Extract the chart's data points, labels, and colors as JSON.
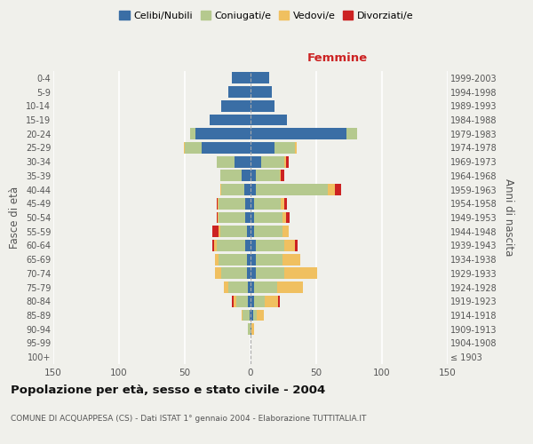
{
  "age_groups": [
    "100+",
    "95-99",
    "90-94",
    "85-89",
    "80-84",
    "75-79",
    "70-74",
    "65-69",
    "60-64",
    "55-59",
    "50-54",
    "45-49",
    "40-44",
    "35-39",
    "30-34",
    "25-29",
    "20-24",
    "15-19",
    "10-14",
    "5-9",
    "0-4"
  ],
  "birth_years": [
    "≤ 1903",
    "1904-1908",
    "1909-1913",
    "1914-1918",
    "1919-1923",
    "1924-1928",
    "1929-1933",
    "1934-1938",
    "1939-1943",
    "1944-1948",
    "1949-1953",
    "1954-1958",
    "1959-1963",
    "1964-1968",
    "1969-1973",
    "1974-1978",
    "1979-1983",
    "1984-1988",
    "1989-1993",
    "1994-1998",
    "1999-2003"
  ],
  "male": {
    "celibe": [
      0,
      0,
      0,
      1,
      2,
      2,
      3,
      3,
      4,
      3,
      4,
      4,
      5,
      7,
      12,
      37,
      42,
      31,
      22,
      17,
      14
    ],
    "coniugato": [
      0,
      0,
      2,
      5,
      9,
      15,
      19,
      21,
      22,
      20,
      20,
      20,
      17,
      16,
      14,
      13,
      4,
      0,
      0,
      0,
      0
    ],
    "vedovo": [
      0,
      0,
      0,
      1,
      2,
      3,
      5,
      3,
      2,
      1,
      1,
      1,
      1,
      0,
      0,
      1,
      0,
      0,
      0,
      0,
      0
    ],
    "divorziato": [
      0,
      0,
      0,
      0,
      1,
      0,
      0,
      0,
      1,
      5,
      1,
      1,
      0,
      0,
      0,
      0,
      0,
      0,
      0,
      0,
      0
    ]
  },
  "female": {
    "nubile": [
      0,
      0,
      1,
      2,
      3,
      3,
      4,
      4,
      4,
      3,
      3,
      3,
      4,
      4,
      8,
      18,
      73,
      28,
      18,
      16,
      14
    ],
    "coniugata": [
      0,
      0,
      0,
      3,
      8,
      17,
      22,
      20,
      22,
      21,
      21,
      20,
      55,
      18,
      18,
      16,
      8,
      0,
      0,
      0,
      0
    ],
    "vedova": [
      0,
      0,
      2,
      5,
      10,
      20,
      25,
      14,
      8,
      5,
      3,
      3,
      5,
      1,
      1,
      1,
      0,
      0,
      0,
      0,
      0
    ],
    "divorziata": [
      0,
      0,
      0,
      0,
      1,
      0,
      0,
      0,
      2,
      0,
      3,
      2,
      5,
      3,
      2,
      0,
      0,
      0,
      0,
      0,
      0
    ]
  },
  "colors": {
    "celibe": "#3a6ea5",
    "coniugato": "#b5c98e",
    "vedovo": "#f0c060",
    "divorziato": "#cc2222"
  },
  "legend_labels": [
    "Celibi/Nubili",
    "Coniugati/e",
    "Vedovi/e",
    "Divorziati/e"
  ],
  "title": "Popolazione per età, sesso e stato civile - 2004",
  "subtitle": "COMUNE DI ACQUAPPESA (CS) - Dati ISTAT 1° gennaio 2004 - Elaborazione TUTTITALIA.IT",
  "xlabel_right": "Femmine",
  "ylabel_left": "Fasce di età",
  "ylabel_right": "Anni di nascita",
  "xlim": 150,
  "background_color": "#f0f0eb"
}
